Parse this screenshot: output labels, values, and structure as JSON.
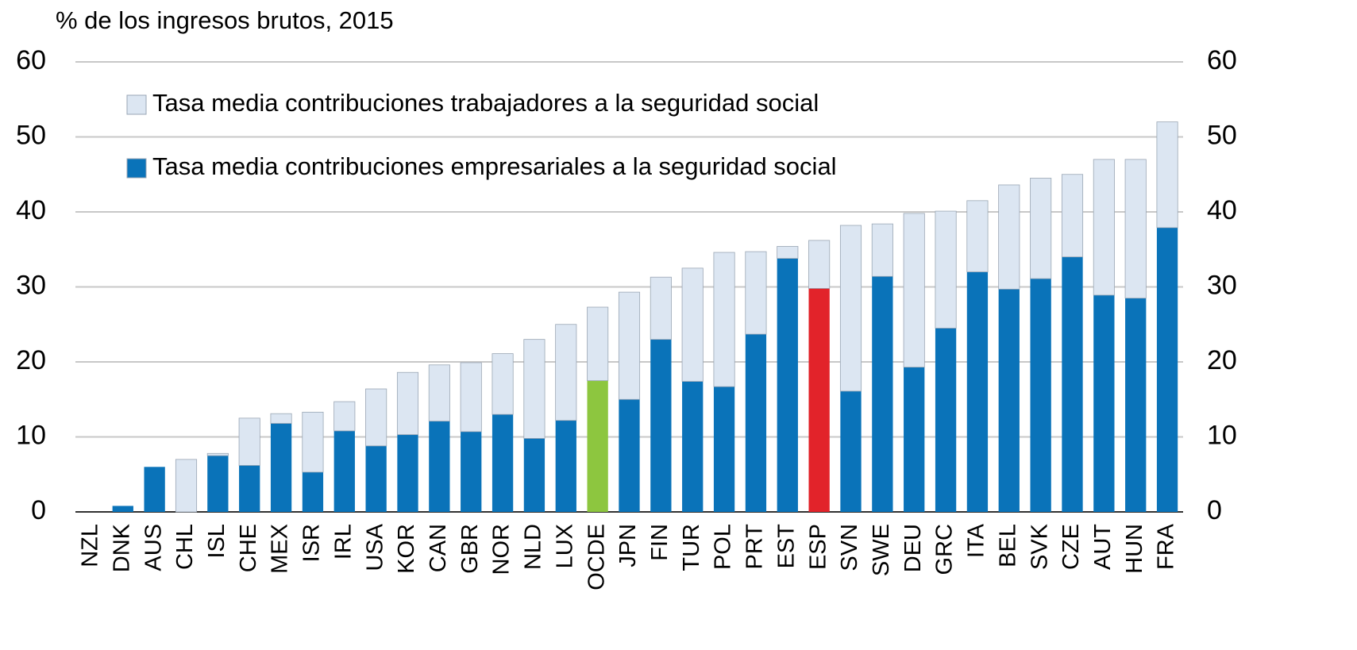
{
  "chart_data": {
    "type": "stacked_bar",
    "title": "% de los ingresos brutos, 2015",
    "categories": [
      "NZL",
      "DNK",
      "AUS",
      "CHL",
      "ISL",
      "CHE",
      "MEX",
      "ISR",
      "IRL",
      "USA",
      "KOR",
      "CAN",
      "GBR",
      "NOR",
      "NLD",
      "LUX",
      "OCDE",
      "JPN",
      "FIN",
      "TUR",
      "POL",
      "PRT",
      "EST",
      "ESP",
      "SVN",
      "SWE",
      "DEU",
      "GRC",
      "ITA",
      "BEL",
      "SVK",
      "CZE",
      "AUT",
      "HUN",
      "FRA"
    ],
    "series": [
      {
        "name": "Tasa media contribuciones empresariales a la seguridad social",
        "color": "#0a73b9",
        "colors": [
          "#0a73b9",
          "#0a73b9",
          "#0a73b9",
          "#0a73b9",
          "#0a73b9",
          "#0a73b9",
          "#0a73b9",
          "#0a73b9",
          "#0a73b9",
          "#0a73b9",
          "#0a73b9",
          "#0a73b9",
          "#0a73b9",
          "#0a73b9",
          "#0a73b9",
          "#0a73b9",
          "#8dc63f",
          "#0a73b9",
          "#0a73b9",
          "#0a73b9",
          "#0a73b9",
          "#0a73b9",
          "#0a73b9",
          "#e2232a",
          "#0a73b9",
          "#0a73b9",
          "#0a73b9",
          "#0a73b9",
          "#0a73b9",
          "#0a73b9",
          "#0a73b9",
          "#0a73b9",
          "#0a73b9",
          "#0a73b9",
          "#0a73b9"
        ],
        "values": [
          0,
          0.8,
          6,
          0,
          7.5,
          6.2,
          11.8,
          5.3,
          10.8,
          8.8,
          10.3,
          12.1,
          10.7,
          13,
          9.8,
          12.2,
          17.5,
          15,
          23,
          17.4,
          16.7,
          23.7,
          33.8,
          29.8,
          16.1,
          31.4,
          19.3,
          24.5,
          32,
          29.7,
          31.1,
          34,
          28.9,
          28.5,
          37.9
        ]
      },
      {
        "name": "Tasa media contribuciones trabajadores a la seguridad social",
        "color": "#dce6f2",
        "values": [
          0,
          0,
          0,
          7,
          0.3,
          6.3,
          1.3,
          8,
          3.9,
          7.6,
          8.3,
          7.5,
          9.2,
          8.1,
          13.2,
          12.8,
          9.8,
          14.3,
          8.3,
          15.1,
          17.9,
          11,
          1.6,
          6.4,
          22.1,
          7,
          20.5,
          15.6,
          9.5,
          13.9,
          13.4,
          11,
          18.1,
          18.5,
          14.1
        ]
      }
    ],
    "ylim": [
      0,
      60
    ],
    "yticks": [
      0,
      10,
      20,
      30,
      40,
      50,
      60
    ],
    "y2lim": [
      0,
      60
    ],
    "y2ticks": [
      0,
      10,
      20,
      30,
      40,
      50,
      60
    ],
    "grid": true,
    "legend": "top-left"
  }
}
